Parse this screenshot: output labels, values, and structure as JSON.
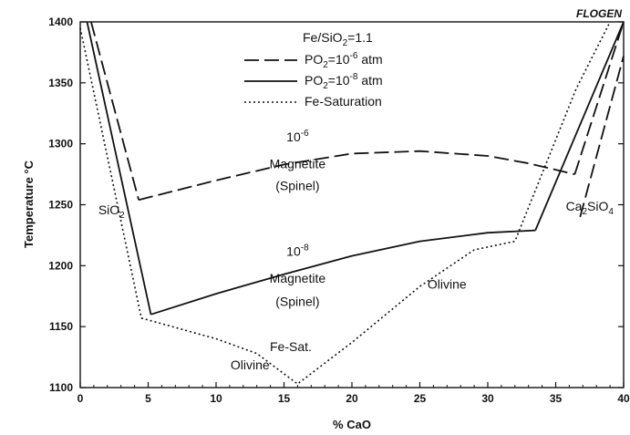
{
  "chart_data": {
    "type": "line",
    "watermark": "FLOGEN",
    "xlabel": "% CaO",
    "ylabel": "Temperature °C",
    "xlim": [
      0,
      40
    ],
    "ylim": [
      1100,
      1400
    ],
    "x_ticks": [
      "0",
      "5",
      "10",
      "15",
      "20",
      "25",
      "30",
      "35",
      "40"
    ],
    "y_ticks": [
      "1100",
      "1150",
      "1200",
      "1250",
      "1300",
      "1350",
      "1400"
    ],
    "grid": false,
    "legend_position": "top-center",
    "legend": {
      "header": {
        "base": "Fe/SiO",
        "sub": "2",
        "tail": "=1.1"
      },
      "entries": [
        {
          "style": "dashed",
          "base": "PO",
          "sub": "2",
          "mid": "=10",
          "sup": "-6",
          "tail": " atm"
        },
        {
          "style": "solid",
          "base": "PO",
          "sub": "2",
          "mid": "=10",
          "sup": "-8",
          "tail": " atm"
        },
        {
          "style": "dotted",
          "base": "Fe-Saturation",
          "sub": "",
          "mid": "",
          "sup": "",
          "tail": ""
        }
      ]
    },
    "series": [
      {
        "style": "dashed",
        "segments": [
          [
            [
              0.8,
              1400
            ],
            [
              4.3,
              1254
            ]
          ],
          [
            [
              4.3,
              1254
            ],
            [
              10,
              1270
            ],
            [
              15,
              1283
            ],
            [
              20,
              1292
            ],
            [
              25,
              1294
            ],
            [
              30,
              1290
            ],
            [
              33,
              1284
            ],
            [
              36.4,
              1275
            ]
          ],
          [
            [
              36.4,
              1275
            ],
            [
              40,
              1400
            ]
          ],
          [
            [
              36.8,
              1240
            ],
            [
              40,
              1372
            ]
          ]
        ]
      },
      {
        "style": "solid",
        "segments": [
          [
            [
              0.5,
              1400
            ],
            [
              5.2,
              1160
            ]
          ],
          [
            [
              5.2,
              1160
            ],
            [
              10,
              1177
            ],
            [
              15,
              1193
            ],
            [
              20,
              1208
            ],
            [
              25,
              1220
            ],
            [
              30,
              1227
            ],
            [
              33.5,
              1229
            ]
          ],
          [
            [
              33.5,
              1229
            ],
            [
              40,
              1400
            ]
          ]
        ]
      },
      {
        "style": "dotted",
        "segments": [
          [
            [
              0,
              1395
            ],
            [
              4.5,
              1157
            ],
            [
              10,
              1140
            ],
            [
              13,
              1128
            ],
            [
              16,
              1103
            ],
            [
              20,
              1137
            ],
            [
              25,
              1183
            ],
            [
              29,
              1213
            ],
            [
              32,
              1220
            ],
            [
              36.5,
              1345
            ],
            [
              39,
              1400
            ]
          ]
        ]
      }
    ],
    "annotations": [
      {
        "base": "10",
        "sup": "-6",
        "x": 16,
        "y": 1302
      },
      {
        "base": "Magnetite",
        "x": 16,
        "y": 1280
      },
      {
        "base": "(Spinel)",
        "x": 16,
        "y": 1262
      },
      {
        "base": "10",
        "sup": "-8",
        "x": 16,
        "y": 1208
      },
      {
        "base": "Magnetite",
        "x": 16,
        "y": 1186
      },
      {
        "base": "(Spinel)",
        "x": 16,
        "y": 1167
      },
      {
        "base": "Olivine",
        "x": 27,
        "y": 1181
      },
      {
        "base": "Olivine",
        "x": 12.5,
        "y": 1115
      },
      {
        "base": "Fe-Sat.",
        "x": 15.5,
        "y": 1130
      },
      {
        "base": "SiO",
        "sub": "2",
        "x": 2.3,
        "y": 1242
      },
      {
        "base": "Ca",
        "sub": "2",
        "mid": "SiO",
        "sub2": "4",
        "x": 37.5,
        "y": 1245
      }
    ]
  }
}
